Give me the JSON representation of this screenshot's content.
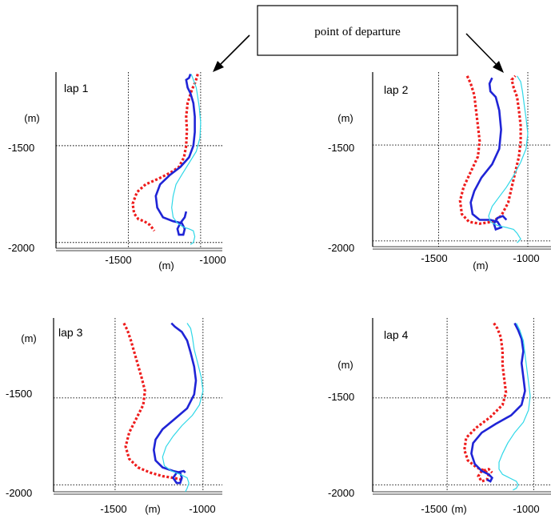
{
  "callout": {
    "label": "point of departure"
  },
  "colors": {
    "red": "#ee1c1c",
    "blue": "#1f24d6",
    "cyan": "#2fd8e8"
  },
  "chart_data": [
    {
      "type": "line",
      "panel_label": "lap 1",
      "x_unit": "(m)",
      "y_unit": "(m)",
      "x_ticks": [
        "-1500",
        "-1000"
      ],
      "y_ticks": [
        "-1500",
        "-2000"
      ],
      "xlim": [
        -2000,
        -850
      ],
      "ylim": [
        -2030,
        -1120
      ],
      "grid": true,
      "series": [
        {
          "color": "red",
          "style": "dashed",
          "x": [
            -1020,
            -1035,
            -1060,
            -1090,
            -1100,
            -1095,
            -1100,
            -1115,
            -1150,
            -1210,
            -1290,
            -1380,
            -1440,
            -1470,
            -1460,
            -1430,
            -1390,
            -1350,
            -1320
          ],
          "y": [
            -1130,
            -1170,
            -1210,
            -1280,
            -1350,
            -1420,
            -1500,
            -1560,
            -1610,
            -1640,
            -1670,
            -1700,
            -1740,
            -1800,
            -1850,
            -1880,
            -1890,
            -1910,
            -1940
          ]
        },
        {
          "color": "blue",
          "style": "solid",
          "x": [
            -1070,
            -1080,
            -1100,
            -1090,
            -1070,
            -1050,
            -1040,
            -1040,
            -1050,
            -1080,
            -1140,
            -1210,
            -1280,
            -1310,
            -1300,
            -1260,
            -1190,
            -1130,
            -1110,
            -1120,
            -1150,
            -1160,
            -1140,
            -1110,
            -1100
          ],
          "y": [
            -1130,
            -1150,
            -1160,
            -1200,
            -1230,
            -1280,
            -1350,
            -1430,
            -1500,
            -1560,
            -1610,
            -1650,
            -1700,
            -1760,
            -1820,
            -1870,
            -1890,
            -1900,
            -1930,
            -1960,
            -1960,
            -1930,
            -1900,
            -1870,
            -1840
          ]
        },
        {
          "color": "cyan",
          "style": "solid",
          "x": [
            -1065,
            -1050,
            -1030,
            -1020,
            -1010,
            -1000,
            -1005,
            -1030,
            -1080,
            -1130,
            -1170,
            -1190,
            -1200,
            -1190,
            -1160,
            -1120,
            -1080,
            -1050,
            -1040,
            -1050,
            -1070
          ],
          "y": [
            -1130,
            -1160,
            -1200,
            -1250,
            -1300,
            -1380,
            -1460,
            -1530,
            -1590,
            -1650,
            -1700,
            -1760,
            -1820,
            -1870,
            -1900,
            -1920,
            -1930,
            -1940,
            -1970,
            -2000,
            -2010
          ]
        }
      ]
    },
    {
      "type": "line",
      "panel_label": "lap 2",
      "x_unit": "(m)",
      "y_unit": "(m)",
      "x_ticks": [
        "-1500",
        "-1000"
      ],
      "y_ticks": [
        "-1500",
        "-2000"
      ],
      "xlim": [
        -1870,
        -870
      ],
      "ylim": [
        -2030,
        -1120
      ],
      "grid": true,
      "series": [
        {
          "color": "red",
          "style": "dashed",
          "x": [
            -1340,
            -1320,
            -1300,
            -1290,
            -1280,
            -1270,
            -1280,
            -1320,
            -1360,
            -1380,
            -1370,
            -1330,
            -1270,
            -1200,
            -1150,
            -1110,
            -1090,
            -1070,
            -1050,
            -1040,
            -1040,
            -1050,
            -1060,
            -1080,
            -1090,
            -1070
          ],
          "y": [
            -1140,
            -1180,
            -1240,
            -1320,
            -1400,
            -1480,
            -1560,
            -1640,
            -1720,
            -1790,
            -1860,
            -1900,
            -1910,
            -1900,
            -1870,
            -1800,
            -1720,
            -1640,
            -1560,
            -1480,
            -1400,
            -1320,
            -1250,
            -1200,
            -1160,
            -1140
          ]
        },
        {
          "color": "blue",
          "style": "solid",
          "x": [
            -1200,
            -1215,
            -1210,
            -1180,
            -1160,
            -1150,
            -1160,
            -1200,
            -1260,
            -1300,
            -1320,
            -1310,
            -1270,
            -1210,
            -1170,
            -1150,
            -1180,
            -1190,
            -1170,
            -1140,
            -1120
          ],
          "y": [
            -1150,
            -1180,
            -1220,
            -1250,
            -1320,
            -1420,
            -1520,
            -1600,
            -1670,
            -1740,
            -1800,
            -1860,
            -1890,
            -1890,
            -1900,
            -1930,
            -1940,
            -1910,
            -1880,
            -1870,
            -1890
          ]
        },
        {
          "color": "cyan",
          "style": "solid",
          "x": [
            -1060,
            -1040,
            -1030,
            -1020,
            -1010,
            -1000,
            -1010,
            -1040,
            -1080,
            -1120,
            -1160,
            -1200,
            -1220,
            -1210,
            -1170,
            -1120,
            -1080,
            -1060,
            -1040,
            -1060
          ],
          "y": [
            -1140,
            -1170,
            -1220,
            -1290,
            -1360,
            -1440,
            -1520,
            -1590,
            -1660,
            -1720,
            -1770,
            -1820,
            -1870,
            -1900,
            -1920,
            -1930,
            -1940,
            -1960,
            -1990,
            -2010
          ]
        }
      ]
    },
    {
      "type": "line",
      "panel_label": "lap 3",
      "x_unit": "(m)",
      "y_unit": "(m)",
      "x_ticks": [
        "-1500",
        "-1000"
      ],
      "y_ticks": [
        "-1500",
        "-2000"
      ],
      "xlim": [
        -1850,
        -890
      ],
      "ylim": [
        -2040,
        -1040
      ],
      "grid": true,
      "series": [
        {
          "color": "red",
          "style": "dashed",
          "x": [
            -1450,
            -1430,
            -1410,
            -1390,
            -1370,
            -1350,
            -1330,
            -1340,
            -1380,
            -1420,
            -1440,
            -1420,
            -1370,
            -1300,
            -1230,
            -1170,
            -1120
          ],
          "y": [
            -1070,
            -1110,
            -1170,
            -1240,
            -1310,
            -1380,
            -1460,
            -1540,
            -1620,
            -1700,
            -1780,
            -1850,
            -1900,
            -1930,
            -1950,
            -1960,
            -1970
          ]
        },
        {
          "color": "blue",
          "style": "solid",
          "x": [
            -1180,
            -1160,
            -1120,
            -1090,
            -1070,
            -1050,
            -1040,
            -1050,
            -1090,
            -1160,
            -1230,
            -1270,
            -1280,
            -1270,
            -1230,
            -1170,
            -1130,
            -1120,
            -1130,
            -1150,
            -1170,
            -1150,
            -1110,
            -1100
          ],
          "y": [
            -1070,
            -1090,
            -1120,
            -1170,
            -1240,
            -1320,
            -1400,
            -1480,
            -1560,
            -1620,
            -1680,
            -1740,
            -1800,
            -1860,
            -1900,
            -1920,
            -1930,
            -1960,
            -1990,
            -1990,
            -1960,
            -1930,
            -1920,
            -1930
          ]
        },
        {
          "color": "cyan",
          "style": "solid",
          "x": [
            -1090,
            -1070,
            -1060,
            -1050,
            -1030,
            -1010,
            -1000,
            -1020,
            -1060,
            -1120,
            -1170,
            -1210,
            -1230,
            -1220,
            -1180,
            -1130,
            -1090,
            -1080,
            -1090,
            -1100
          ],
          "y": [
            -1070,
            -1100,
            -1150,
            -1220,
            -1300,
            -1380,
            -1460,
            -1540,
            -1600,
            -1660,
            -1720,
            -1780,
            -1840,
            -1890,
            -1920,
            -1940,
            -1960,
            -1990,
            -2020,
            -2040
          ]
        }
      ]
    },
    {
      "type": "line",
      "panel_label": "lap 4",
      "x_unit": "(m)",
      "y_unit": "(m)",
      "x_ticks": [
        "-1500",
        "-1000"
      ],
      "y_ticks": [
        "-1500",
        "-2000"
      ],
      "xlim": [
        -1930,
        -900
      ],
      "ylim": [
        -2040,
        -1040
      ],
      "grid": true,
      "series": [
        {
          "color": "red",
          "style": "dashed",
          "x": [
            -1230,
            -1210,
            -1190,
            -1180,
            -1180,
            -1170,
            -1160,
            -1180,
            -1250,
            -1330,
            -1390,
            -1400,
            -1380,
            -1330,
            -1280,
            -1260,
            -1270,
            -1300,
            -1320,
            -1300,
            -1260,
            -1240
          ],
          "y": [
            -1070,
            -1100,
            -1150,
            -1230,
            -1310,
            -1390,
            -1470,
            -1540,
            -1610,
            -1670,
            -1730,
            -1800,
            -1860,
            -1900,
            -1920,
            -1940,
            -1970,
            -1980,
            -1950,
            -1920,
            -1910,
            -1930
          ]
        },
        {
          "color": "blue",
          "style": "solid",
          "x": [
            -1110,
            -1090,
            -1070,
            -1060,
            -1070,
            -1060,
            -1050,
            -1070,
            -1130,
            -1220,
            -1300,
            -1350,
            -1360,
            -1340,
            -1300,
            -1260,
            -1240,
            -1250,
            -1270
          ],
          "y": [
            -1070,
            -1110,
            -1160,
            -1230,
            -1300,
            -1380,
            -1460,
            -1540,
            -1600,
            -1650,
            -1700,
            -1760,
            -1820,
            -1880,
            -1920,
            -1940,
            -1960,
            -1980,
            -1970
          ]
        },
        {
          "color": "cyan",
          "style": "solid",
          "x": [
            -1100,
            -1080,
            -1060,
            -1050,
            -1040,
            -1030,
            -1020,
            -1030,
            -1060,
            -1110,
            -1150,
            -1180,
            -1200,
            -1200,
            -1180,
            -1140,
            -1100,
            -1090,
            -1100,
            -1120
          ],
          "y": [
            -1070,
            -1110,
            -1170,
            -1250,
            -1330,
            -1410,
            -1490,
            -1570,
            -1640,
            -1700,
            -1760,
            -1820,
            -1870,
            -1910,
            -1940,
            -1960,
            -1980,
            -2000,
            -2020,
            -2030
          ]
        }
      ]
    }
  ]
}
